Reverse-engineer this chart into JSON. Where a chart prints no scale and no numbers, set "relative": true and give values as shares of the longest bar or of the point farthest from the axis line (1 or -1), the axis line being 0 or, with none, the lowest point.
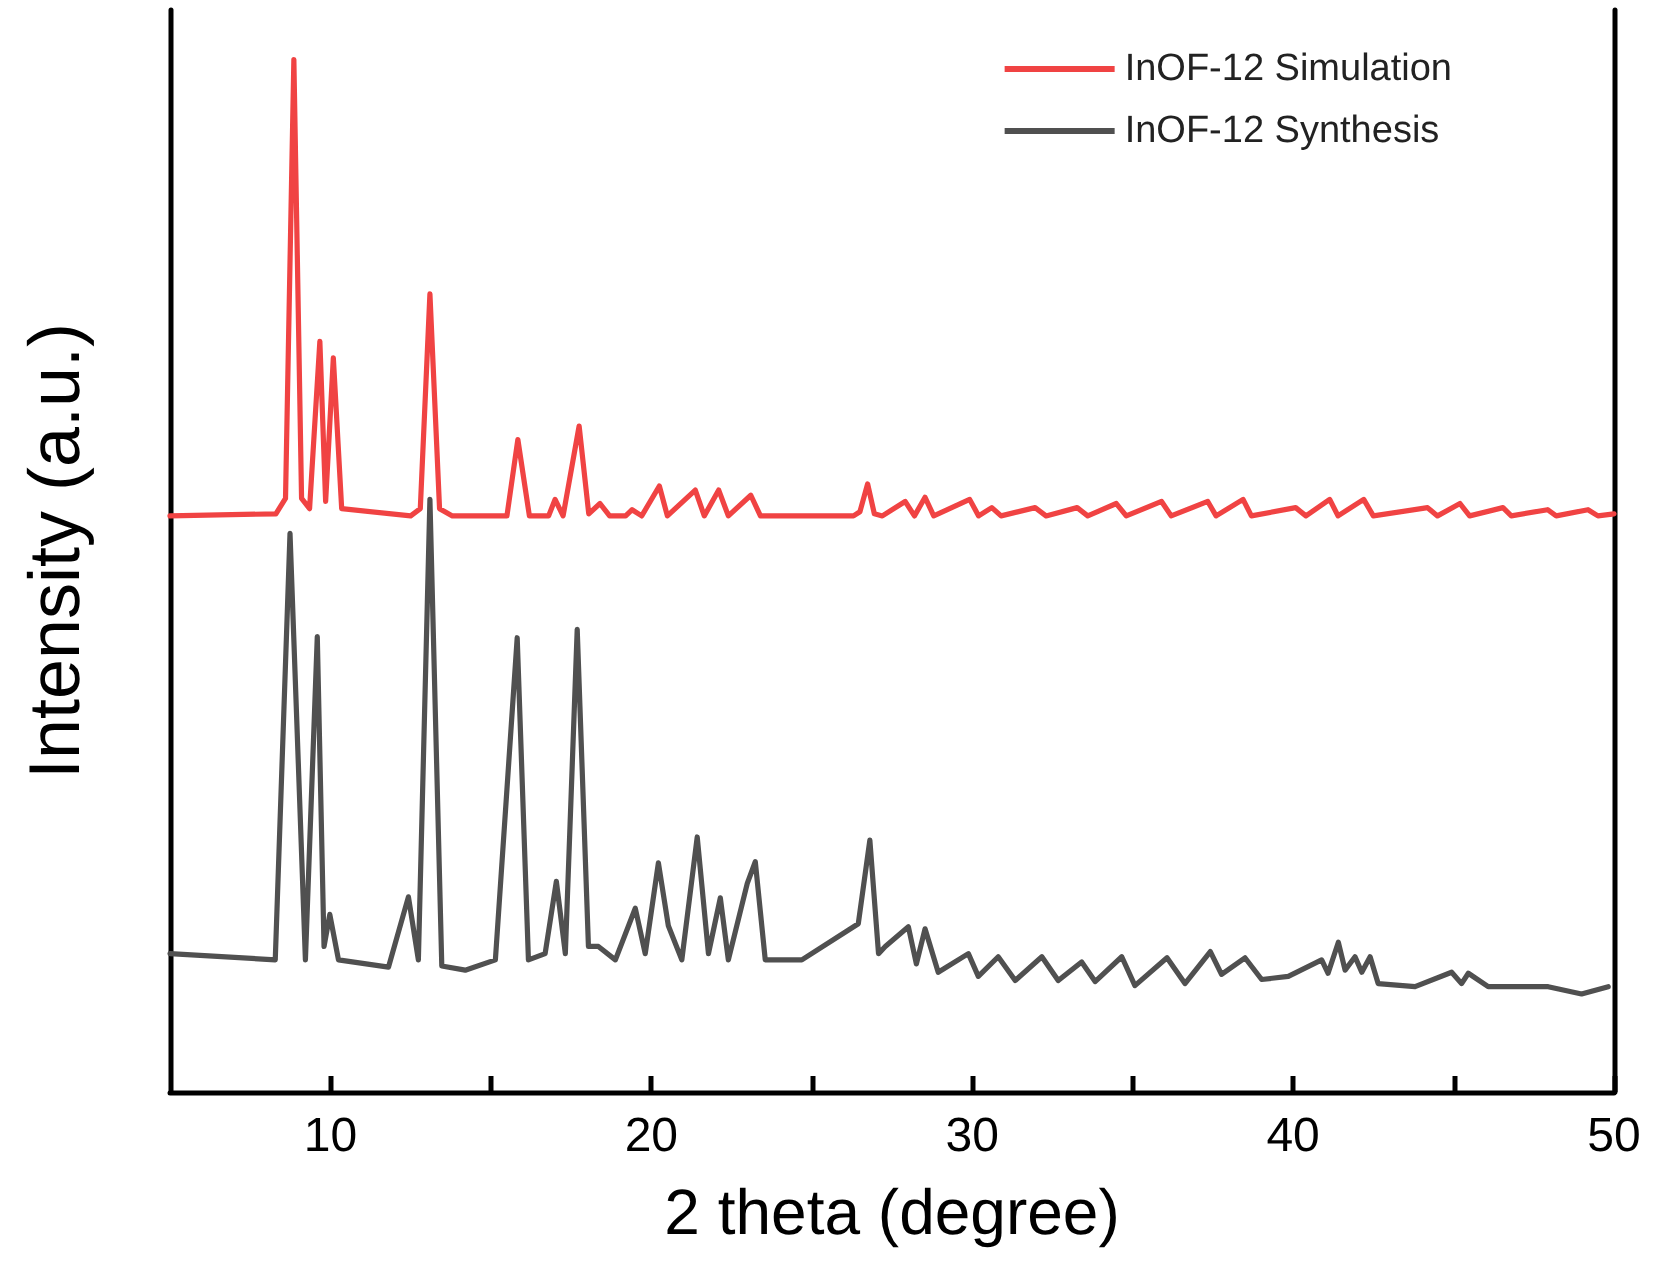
{
  "chart_data": {
    "type": "line",
    "relative": true,
    "xlabel": "2 theta (degree)",
    "ylabel": "Intensity (a.u.)",
    "xlim": [
      5,
      50
    ],
    "xticks": [
      10,
      {
        "value": 15,
        "label": null
      },
      20,
      {
        "value": 25,
        "label": null
      },
      30,
      {
        "value": 35,
        "label": null
      },
      40,
      {
        "value": 45,
        "label": null
      },
      50
    ],
    "tick_labels": "x",
    "legend": "top right",
    "grid": false,
    "marker": "none",
    "line_style": "solid",
    "series": [
      {
        "name": "InOF-12 Simulation",
        "color": "#f04343",
        "x": [
          5.0,
          8.3,
          8.6,
          8.86,
          9.1,
          9.35,
          9.67,
          9.85,
          10.09,
          10.35,
          12.5,
          12.8,
          13.1,
          13.4,
          13.8,
          15.5,
          15.84,
          16.2,
          16.8,
          17.0,
          17.25,
          17.75,
          18.05,
          18.4,
          18.7,
          19.2,
          19.4,
          19.7,
          20.25,
          20.5,
          21.37,
          21.65,
          22.1,
          22.4,
          23.1,
          23.4,
          26.3,
          26.5,
          26.74,
          26.95,
          27.2,
          27.91,
          28.2,
          28.53,
          28.8,
          29.92,
          30.2,
          30.61,
          30.9,
          31.96,
          32.3,
          33.27,
          33.6,
          34.49,
          34.8,
          35.9,
          36.2,
          37.34,
          37.6,
          38.44,
          38.7,
          40.08,
          40.4,
          41.14,
          41.4,
          42.2,
          42.5,
          44.19,
          44.5,
          45.2,
          45.5,
          46.54,
          46.8,
          47.93,
          48.2,
          49.19,
          49.5,
          50.0
        ],
        "values": [
          0.558,
          0.56,
          0.575,
          1.0,
          0.575,
          0.565,
          0.727,
          0.572,
          0.711,
          0.565,
          0.558,
          0.565,
          0.773,
          0.565,
          0.558,
          0.558,
          0.632,
          0.558,
          0.558,
          0.574,
          0.558,
          0.645,
          0.56,
          0.57,
          0.558,
          0.558,
          0.564,
          0.558,
          0.587,
          0.558,
          0.583,
          0.558,
          0.583,
          0.558,
          0.578,
          0.558,
          0.558,
          0.562,
          0.589,
          0.56,
          0.558,
          0.572,
          0.558,
          0.576,
          0.558,
          0.574,
          0.558,
          0.566,
          0.558,
          0.566,
          0.558,
          0.566,
          0.558,
          0.57,
          0.558,
          0.572,
          0.558,
          0.572,
          0.558,
          0.574,
          0.558,
          0.566,
          0.558,
          0.574,
          0.558,
          0.574,
          0.558,
          0.566,
          0.558,
          0.57,
          0.558,
          0.566,
          0.558,
          0.564,
          0.558,
          0.564,
          0.558,
          0.56
        ]
      },
      {
        "name": "InOF-12 Synthesis",
        "color": "#505050",
        "x": [
          5.0,
          8.28,
          8.74,
          9.22,
          9.59,
          9.8,
          9.98,
          10.25,
          11.81,
          12.43,
          12.74,
          13.1,
          13.47,
          14.2,
          15.14,
          15.82,
          16.17,
          16.69,
          17.04,
          17.32,
          17.69,
          18.04,
          18.35,
          18.88,
          19.5,
          19.81,
          20.22,
          20.53,
          20.95,
          21.43,
          21.78,
          22.15,
          22.4,
          22.99,
          23.24,
          23.55,
          24.69,
          26.45,
          26.81,
          27.08,
          27.29,
          28.01,
          28.26,
          28.53,
          28.94,
          29.88,
          30.19,
          30.81,
          31.34,
          32.17,
          32.68,
          33.41,
          33.83,
          34.66,
          35.07,
          36.07,
          36.63,
          37.42,
          37.77,
          38.5,
          39.02,
          39.85,
          40.89,
          41.09,
          41.41,
          41.62,
          41.93,
          42.14,
          42.4,
          42.65,
          43.8,
          44.94,
          45.25,
          45.46,
          46.08,
          47.95,
          48.99,
          49.82
        ],
        "values": [
          0.134,
          0.128,
          0.541,
          0.128,
          0.441,
          0.141,
          0.172,
          0.128,
          0.121,
          0.189,
          0.128,
          0.574,
          0.122,
          0.118,
          0.128,
          0.44,
          0.128,
          0.134,
          0.204,
          0.134,
          0.448,
          0.141,
          0.141,
          0.128,
          0.178,
          0.134,
          0.222,
          0.161,
          0.128,
          0.247,
          0.134,
          0.188,
          0.128,
          0.202,
          0.223,
          0.128,
          0.128,
          0.163,
          0.244,
          0.134,
          0.141,
          0.16,
          0.124,
          0.158,
          0.116,
          0.134,
          0.112,
          0.131,
          0.108,
          0.131,
          0.108,
          0.126,
          0.107,
          0.131,
          0.103,
          0.13,
          0.105,
          0.136,
          0.114,
          0.13,
          0.109,
          0.112,
          0.128,
          0.115,
          0.145,
          0.118,
          0.131,
          0.116,
          0.131,
          0.105,
          0.102,
          0.116,
          0.105,
          0.115,
          0.102,
          0.102,
          0.095,
          0.102
        ]
      }
    ]
  }
}
